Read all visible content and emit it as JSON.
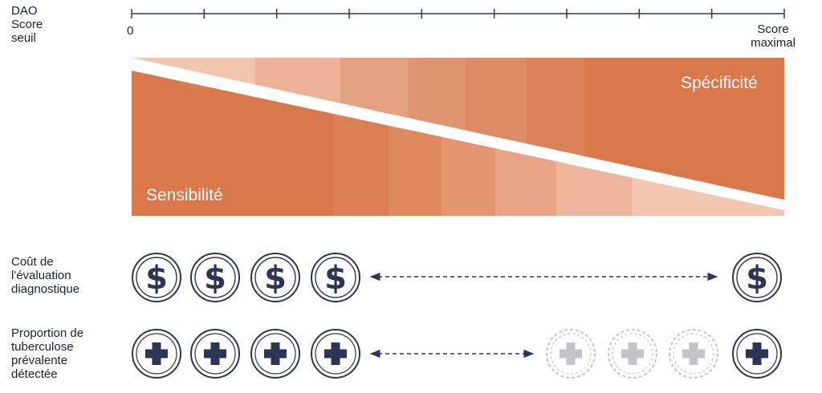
{
  "axis": {
    "title_lines": [
      "DAO",
      "Score",
      "seuil"
    ],
    "start_label": "0",
    "end_label_lines": [
      "Score",
      "maximal"
    ]
  },
  "tradeoff": {
    "sensitivity_label": "Sensibilité",
    "specificity_label": "Spécificité",
    "colors": {
      "sensitivity_bands": [
        "#d9784a",
        "#d9784a",
        "#dc7f53",
        "#df895f",
        "#e39670",
        "#e8a585",
        "#edb59a",
        "#f2c7b2"
      ],
      "specificity_bands": [
        "#f1c5ae",
        "#ebb298",
        "#e5a282",
        "#e09471",
        "#dd8b64",
        "#da8259",
        "#d9784a"
      ]
    }
  },
  "cost_row": {
    "label_lines": [
      "Coût de",
      "l'évaluation",
      "diagnostique"
    ],
    "icon": "dollar-coin-icon",
    "count_left": 4,
    "count_right": 1
  },
  "tb_row": {
    "label_lines": [
      "Proportion de",
      "tuberculose",
      "prévalente",
      "détectée"
    ],
    "icon": "medical-cross-icon",
    "count_active_left": 4,
    "count_faded": 3,
    "count_active_right": 1
  },
  "colors": {
    "navy": "#2d3556",
    "faded": "#c4c4c8",
    "orange": "#d9784a"
  }
}
